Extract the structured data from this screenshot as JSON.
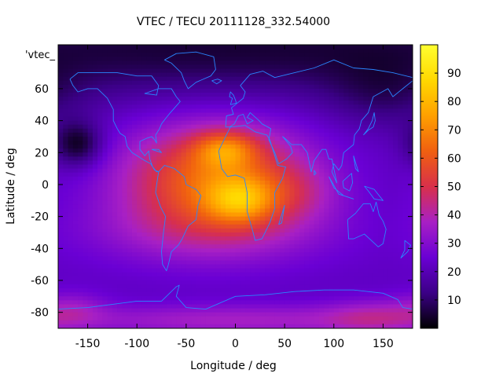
{
  "chart_data": {
    "type": "heatmap",
    "title": "VTEC / TECU 20111128_332.54000",
    "xlabel": "Longitude / deg",
    "ylabel": "Latitude / deg",
    "inset_label": "'vtec_",
    "xlim": [
      -180,
      180
    ],
    "ylim": [
      -90,
      87.5
    ],
    "x_ticks": [
      -150,
      -100,
      -50,
      0,
      50,
      100,
      150
    ],
    "y_ticks": [
      -80,
      -60,
      -40,
      -20,
      0,
      20,
      40,
      60
    ],
    "colorbar": {
      "range": [
        0,
        100
      ],
      "ticks": [
        10,
        20,
        30,
        40,
        50,
        60,
        70,
        80,
        90
      ],
      "palette": [
        "#000000",
        "#3b0086",
        "#6a00d4",
        "#a820c4",
        "#d8304a",
        "#f06010",
        "#ffa000",
        "#ffd800",
        "#ffff30"
      ]
    },
    "grid": {
      "lon_step": 5,
      "lat_step": 2.5
    },
    "field": {
      "background": 22,
      "features": [
        {
          "name": "equatorial-crest",
          "lon": -20,
          "lat": 3,
          "slon": 65,
          "slat": 24,
          "amp": 43
        },
        {
          "name": "north-crest-peak",
          "lon": -10,
          "lat": 22,
          "slon": 22,
          "slat": 8,
          "amp": 24
        },
        {
          "name": "south-crest-peak",
          "lon": 5,
          "lat": -10,
          "slon": 24,
          "slat": 10,
          "amp": 26
        },
        {
          "name": "southern-band",
          "lon": -30,
          "lat": -30,
          "slon": 95,
          "slat": 15,
          "amp": 10
        },
        {
          "name": "east-extension",
          "lon": 60,
          "lat": -5,
          "slon": 30,
          "slat": 12,
          "amp": 8
        },
        {
          "name": "antarctic-band",
          "lon": 0,
          "lat": -85,
          "slon": 140,
          "slat": 7,
          "amp": 15
        },
        {
          "name": "antarctic-east",
          "lon": 140,
          "lat": -83,
          "slon": 35,
          "slat": 8,
          "amp": 12
        },
        {
          "name": "antarctic-west",
          "lon": -165,
          "lat": -78,
          "slon": 25,
          "slat": 8,
          "amp": 10
        },
        {
          "name": "pacific-minimum",
          "lon": -160,
          "lat": 25,
          "slon": 18,
          "slat": 10,
          "amp": -20
        },
        {
          "name": "north-polar-dark",
          "lon": 0,
          "lat": 85,
          "slon": 400,
          "slat": 22,
          "amp": -17
        },
        {
          "name": "n-pacific-trough",
          "lon": 150,
          "lat": 55,
          "slon": 40,
          "slat": 15,
          "amp": -8
        }
      ]
    },
    "coastlines": [
      {
        "name": "north-america",
        "points": [
          [
            -168,
            66
          ],
          [
            -160,
            70
          ],
          [
            -140,
            70
          ],
          [
            -120,
            70
          ],
          [
            -100,
            68
          ],
          [
            -85,
            68
          ],
          [
            -78,
            62
          ],
          [
            -80,
            56
          ],
          [
            -92,
            57
          ],
          [
            -78,
            60
          ],
          [
            -65,
            60
          ],
          [
            -60,
            55
          ],
          [
            -56,
            52
          ],
          [
            -66,
            45
          ],
          [
            -70,
            42
          ],
          [
            -75,
            38
          ],
          [
            -77,
            35
          ],
          [
            -81,
            31
          ],
          [
            -80,
            26
          ],
          [
            -82,
            28
          ],
          [
            -85,
            30
          ],
          [
            -90,
            29
          ],
          [
            -97,
            27
          ],
          [
            -97,
            22
          ],
          [
            -92,
            18
          ],
          [
            -88,
            21
          ],
          [
            -87,
            16
          ],
          [
            -84,
            11
          ],
          [
            -80,
            8
          ],
          [
            -78,
            8
          ],
          [
            -82,
            9
          ],
          [
            -86,
            13
          ],
          [
            -92,
            15
          ],
          [
            -105,
            20
          ],
          [
            -110,
            24
          ],
          [
            -112,
            30
          ],
          [
            -117,
            32
          ],
          [
            -120,
            35
          ],
          [
            -124,
            40
          ],
          [
            -124,
            47
          ],
          [
            -130,
            54
          ],
          [
            -140,
            60
          ],
          [
            -150,
            60
          ],
          [
            -160,
            58
          ],
          [
            -165,
            62
          ],
          [
            -168,
            66
          ]
        ]
      },
      {
        "name": "south-america",
        "points": [
          [
            -78,
            8
          ],
          [
            -72,
            12
          ],
          [
            -62,
            10
          ],
          [
            -52,
            5
          ],
          [
            -50,
            0
          ],
          [
            -40,
            -3
          ],
          [
            -35,
            -7
          ],
          [
            -38,
            -13
          ],
          [
            -40,
            -22
          ],
          [
            -48,
            -26
          ],
          [
            -54,
            -34
          ],
          [
            -58,
            -38
          ],
          [
            -65,
            -42
          ],
          [
            -68,
            -50
          ],
          [
            -70,
            -54
          ],
          [
            -74,
            -50
          ],
          [
            -75,
            -42
          ],
          [
            -73,
            -30
          ],
          [
            -71,
            -20
          ],
          [
            -76,
            -14
          ],
          [
            -81,
            -5
          ],
          [
            -80,
            0
          ],
          [
            -78,
            8
          ]
        ]
      },
      {
        "name": "greenland",
        "points": [
          [
            -72,
            78
          ],
          [
            -60,
            82
          ],
          [
            -40,
            83
          ],
          [
            -22,
            80
          ],
          [
            -20,
            72
          ],
          [
            -25,
            68
          ],
          [
            -40,
            64
          ],
          [
            -48,
            60
          ],
          [
            -52,
            65
          ],
          [
            -55,
            70
          ],
          [
            -65,
            76
          ],
          [
            -72,
            78
          ]
        ]
      },
      {
        "name": "africa",
        "points": [
          [
            -17,
            21
          ],
          [
            -10,
            30
          ],
          [
            -5,
            36
          ],
          [
            10,
            37
          ],
          [
            20,
            33
          ],
          [
            32,
            31
          ],
          [
            35,
            28
          ],
          [
            43,
            12
          ],
          [
            51,
            11
          ],
          [
            48,
            4
          ],
          [
            40,
            -5
          ],
          [
            40,
            -15
          ],
          [
            35,
            -24
          ],
          [
            27,
            -34
          ],
          [
            20,
            -35
          ],
          [
            18,
            -30
          ],
          [
            12,
            -17
          ],
          [
            12,
            -5
          ],
          [
            9,
            4
          ],
          [
            0,
            6
          ],
          [
            -8,
            5
          ],
          [
            -14,
            10
          ],
          [
            -17,
            21
          ]
        ]
      },
      {
        "name": "eurasia",
        "points": [
          [
            -10,
            36
          ],
          [
            -9,
            43
          ],
          [
            -2,
            44
          ],
          [
            -4,
            48
          ],
          [
            2,
            51
          ],
          [
            8,
            54
          ],
          [
            10,
            58
          ],
          [
            5,
            62
          ],
          [
            15,
            69
          ],
          [
            28,
            71
          ],
          [
            40,
            67
          ],
          [
            60,
            70
          ],
          [
            80,
            73
          ],
          [
            100,
            78
          ],
          [
            120,
            73
          ],
          [
            140,
            72
          ],
          [
            160,
            70
          ],
          [
            180,
            67
          ],
          [
            180,
            65
          ],
          [
            170,
            60
          ],
          [
            160,
            55
          ],
          [
            155,
            60
          ],
          [
            140,
            55
          ],
          [
            135,
            45
          ],
          [
            128,
            40
          ],
          [
            126,
            35
          ],
          [
            121,
            31
          ],
          [
            120,
            25
          ],
          [
            110,
            20
          ],
          [
            108,
            12
          ],
          [
            105,
            9
          ],
          [
            100,
            13
          ],
          [
            98,
            8
          ],
          [
            103,
            1
          ],
          [
            98,
            16
          ],
          [
            95,
            16
          ],
          [
            92,
            22
          ],
          [
            88,
            22
          ],
          [
            80,
            15
          ],
          [
            77,
            8
          ],
          [
            73,
            20
          ],
          [
            67,
            25
          ],
          [
            57,
            25
          ],
          [
            52,
            28
          ],
          [
            48,
            30
          ],
          [
            56,
            24
          ],
          [
            58,
            20
          ],
          [
            52,
            16
          ],
          [
            44,
            13
          ],
          [
            40,
            20
          ],
          [
            34,
            28
          ],
          [
            36,
            35
          ],
          [
            27,
            38
          ],
          [
            24,
            40
          ],
          [
            15,
            45
          ],
          [
            12,
            42
          ],
          [
            18,
            40
          ],
          [
            12,
            38
          ],
          [
            8,
            44
          ],
          [
            3,
            43
          ],
          [
            -1,
            38
          ],
          [
            -6,
            36
          ],
          [
            -10,
            36
          ]
        ]
      },
      {
        "name": "australia",
        "points": [
          [
            114,
            -22
          ],
          [
            122,
            -18
          ],
          [
            130,
            -12
          ],
          [
            137,
            -12
          ],
          [
            140,
            -17
          ],
          [
            143,
            -11
          ],
          [
            146,
            -19
          ],
          [
            150,
            -23
          ],
          [
            153,
            -28
          ],
          [
            150,
            -37
          ],
          [
            145,
            -39
          ],
          [
            138,
            -35
          ],
          [
            131,
            -31
          ],
          [
            120,
            -34
          ],
          [
            115,
            -34
          ],
          [
            114,
            -22
          ]
        ]
      },
      {
        "name": "antarctica",
        "points": [
          [
            -180,
            -78
          ],
          [
            -150,
            -77
          ],
          [
            -100,
            -73
          ],
          [
            -75,
            -73
          ],
          [
            -60,
            -64
          ],
          [
            -57,
            -63
          ],
          [
            -60,
            -70
          ],
          [
            -50,
            -77
          ],
          [
            -30,
            -78
          ],
          [
            0,
            -70
          ],
          [
            30,
            -69
          ],
          [
            60,
            -67
          ],
          [
            90,
            -66
          ],
          [
            120,
            -66
          ],
          [
            150,
            -68
          ],
          [
            165,
            -72
          ],
          [
            170,
            -77
          ],
          [
            180,
            -78
          ]
        ]
      },
      {
        "name": "uk",
        "points": [
          [
            -5,
            50
          ],
          [
            1,
            51
          ],
          [
            0,
            53
          ],
          [
            -2,
            56
          ],
          [
            -5,
            58
          ],
          [
            -6,
            55
          ],
          [
            -3,
            54
          ],
          [
            -5,
            50
          ]
        ]
      },
      {
        "name": "japan",
        "points": [
          [
            130,
            31
          ],
          [
            135,
            34
          ],
          [
            140,
            36
          ],
          [
            142,
            40
          ],
          [
            141,
            45
          ],
          [
            139,
            40
          ],
          [
            135,
            35
          ],
          [
            130,
            31
          ]
        ]
      },
      {
        "name": "madagascar",
        "points": [
          [
            44,
            -25
          ],
          [
            49,
            -15
          ],
          [
            50,
            -13
          ],
          [
            47,
            -24
          ],
          [
            44,
            -25
          ]
        ]
      },
      {
        "name": "new-zealand",
        "points": [
          [
            172,
            -35
          ],
          [
            178,
            -38
          ],
          [
            175,
            -42
          ],
          [
            168,
            -46
          ],
          [
            172,
            -41
          ],
          [
            172,
            -35
          ]
        ]
      },
      {
        "name": "indonesia",
        "points": [
          [
            95,
            5
          ],
          [
            105,
            -6
          ],
          [
            115,
            -8
          ],
          [
            120,
            -9
          ],
          [
            110,
            -7
          ],
          [
            100,
            -2
          ],
          [
            95,
            5
          ]
        ]
      },
      {
        "name": "borneo",
        "points": [
          [
            109,
            2
          ],
          [
            118,
            7
          ],
          [
            119,
            1
          ],
          [
            116,
            -4
          ],
          [
            110,
            -2
          ],
          [
            109,
            2
          ]
        ]
      },
      {
        "name": "new-guinea",
        "points": [
          [
            131,
            -1
          ],
          [
            141,
            -3
          ],
          [
            150,
            -10
          ],
          [
            141,
            -9
          ],
          [
            135,
            -4
          ],
          [
            131,
            -1
          ]
        ]
      },
      {
        "name": "iceland",
        "points": [
          [
            -24,
            65
          ],
          [
            -18,
            66
          ],
          [
            -14,
            65
          ],
          [
            -19,
            63
          ],
          [
            -24,
            65
          ]
        ]
      },
      {
        "name": "sri-lanka",
        "points": [
          [
            80,
            9
          ],
          [
            82,
            7
          ],
          [
            80,
            6
          ],
          [
            80,
            9
          ]
        ]
      },
      {
        "name": "philippines",
        "points": [
          [
            120,
            18
          ],
          [
            122,
            14
          ],
          [
            125,
            8
          ],
          [
            122,
            10
          ],
          [
            120,
            18
          ]
        ]
      },
      {
        "name": "cuba",
        "points": [
          [
            -85,
            22
          ],
          [
            -75,
            20
          ],
          [
            -78,
            22
          ],
          [
            -85,
            22
          ]
        ]
      }
    ]
  }
}
